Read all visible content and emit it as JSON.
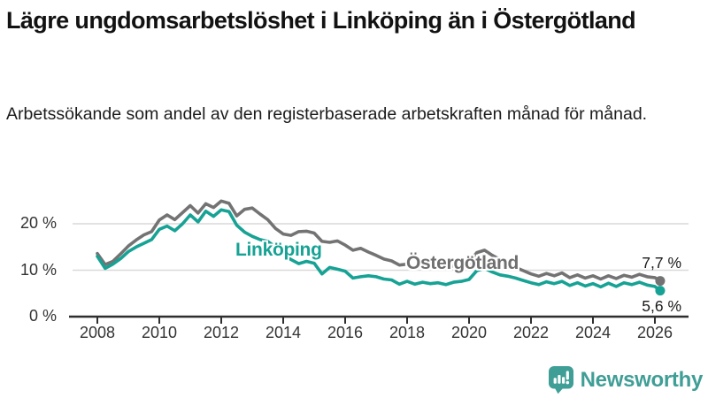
{
  "header": {
    "title": "Lägre ungdomsarbetslöshet i Linköping än i Östergötland",
    "subtitle": "Arbetssökande som andel av den registerbaserade arbetskraften månad för månad."
  },
  "chart_data": {
    "type": "line",
    "grid": true,
    "colors": {
      "gridline": "#d9d9d9",
      "axis": "#2e2e2e",
      "tick_text": "#333333"
    },
    "x_axis": {
      "ticks": [
        2008,
        2010,
        2012,
        2014,
        2016,
        2018,
        2020,
        2022,
        2024,
        2026
      ],
      "range": [
        2008,
        2026.2
      ]
    },
    "y_axis": {
      "unit": "%",
      "ticks": [
        {
          "label": "0 %",
          "value": 0
        },
        {
          "label": "10 %",
          "value": 10
        },
        {
          "label": "20 %",
          "value": 20
        }
      ],
      "ylim": [
        0,
        27
      ]
    },
    "series": [
      {
        "name": "Östergötland",
        "color": "#737373",
        "end_label": "7,7 %",
        "end_value": 7.7,
        "points": [
          [
            2008,
            13.6
          ],
          [
            2008.25,
            11.2
          ],
          [
            2008.5,
            11.9
          ],
          [
            2008.75,
            13.5
          ],
          [
            2009,
            15.2
          ],
          [
            2009.25,
            16.5
          ],
          [
            2009.5,
            17.6
          ],
          [
            2009.75,
            18.3
          ],
          [
            2010,
            20.8
          ],
          [
            2010.25,
            21.9
          ],
          [
            2010.5,
            20.9
          ],
          [
            2010.75,
            22.4
          ],
          [
            2011,
            23.9
          ],
          [
            2011.25,
            22.3
          ],
          [
            2011.5,
            24.3
          ],
          [
            2011.75,
            23.5
          ],
          [
            2012,
            24.9
          ],
          [
            2012.25,
            24.4
          ],
          [
            2012.5,
            21.7
          ],
          [
            2012.75,
            23.1
          ],
          [
            2013,
            23.4
          ],
          [
            2013.25,
            22.1
          ],
          [
            2013.5,
            20.9
          ],
          [
            2013.75,
            19.0
          ],
          [
            2014,
            17.8
          ],
          [
            2014.25,
            17.5
          ],
          [
            2014.5,
            18.3
          ],
          [
            2014.75,
            18.4
          ],
          [
            2015,
            18.0
          ],
          [
            2015.25,
            16.2
          ],
          [
            2015.5,
            16.0
          ],
          [
            2015.75,
            16.3
          ],
          [
            2016,
            15.4
          ],
          [
            2016.25,
            14.3
          ],
          [
            2016.5,
            14.7
          ],
          [
            2016.75,
            13.9
          ],
          [
            2017,
            13.2
          ],
          [
            2017.25,
            12.4
          ],
          [
            2017.5,
            12.0
          ],
          [
            2017.75,
            11.1
          ],
          [
            2018,
            11.3
          ],
          [
            2018.25,
            10.5
          ],
          [
            2018.5,
            10.9
          ],
          [
            2018.75,
            10.6
          ],
          [
            2019,
            10.9
          ],
          [
            2019.25,
            10.4
          ],
          [
            2019.5,
            11.0
          ],
          [
            2019.75,
            11.3
          ],
          [
            2020,
            11.6
          ],
          [
            2020.25,
            13.8
          ],
          [
            2020.5,
            14.3
          ],
          [
            2020.75,
            13.2
          ],
          [
            2021,
            12.3
          ],
          [
            2021.25,
            11.4
          ],
          [
            2021.5,
            10.6
          ],
          [
            2021.75,
            9.9
          ],
          [
            2022,
            9.2
          ],
          [
            2022.25,
            8.7
          ],
          [
            2022.5,
            9.3
          ],
          [
            2022.75,
            8.8
          ],
          [
            2023,
            9.4
          ],
          [
            2023.25,
            8.4
          ],
          [
            2023.5,
            9.0
          ],
          [
            2023.75,
            8.3
          ],
          [
            2024,
            8.8
          ],
          [
            2024.25,
            8.1
          ],
          [
            2024.5,
            8.8
          ],
          [
            2024.75,
            8.2
          ],
          [
            2025,
            8.9
          ],
          [
            2025.25,
            8.5
          ],
          [
            2025.5,
            9.1
          ],
          [
            2025.75,
            8.6
          ],
          [
            2026,
            8.4
          ],
          [
            2026.17,
            7.7
          ]
        ]
      },
      {
        "name": "Linköping",
        "color": "#16a294",
        "end_label": "5,6 %",
        "end_value": 5.6,
        "points": [
          [
            2008,
            13.0
          ],
          [
            2008.25,
            10.4
          ],
          [
            2008.5,
            11.3
          ],
          [
            2008.75,
            12.5
          ],
          [
            2009,
            14.0
          ],
          [
            2009.25,
            15.0
          ],
          [
            2009.5,
            15.8
          ],
          [
            2009.75,
            16.6
          ],
          [
            2010,
            18.8
          ],
          [
            2010.25,
            19.5
          ],
          [
            2010.5,
            18.5
          ],
          [
            2010.75,
            20.0
          ],
          [
            2011,
            21.9
          ],
          [
            2011.25,
            20.4
          ],
          [
            2011.5,
            22.7
          ],
          [
            2011.75,
            21.6
          ],
          [
            2012,
            23.0
          ],
          [
            2012.25,
            22.6
          ],
          [
            2012.5,
            19.7
          ],
          [
            2012.75,
            18.2
          ],
          [
            2013,
            17.3
          ],
          [
            2013.25,
            16.6
          ],
          [
            2013.5,
            16.2
          ],
          [
            2013.75,
            15.0
          ],
          [
            2014,
            13.3
          ],
          [
            2014.25,
            12.3
          ],
          [
            2014.5,
            11.4
          ],
          [
            2014.75,
            11.9
          ],
          [
            2015,
            11.5
          ],
          [
            2015.25,
            9.2
          ],
          [
            2015.5,
            10.6
          ],
          [
            2015.75,
            10.2
          ],
          [
            2016,
            9.8
          ],
          [
            2016.25,
            8.3
          ],
          [
            2016.5,
            8.6
          ],
          [
            2016.75,
            8.8
          ],
          [
            2017,
            8.6
          ],
          [
            2017.25,
            8.1
          ],
          [
            2017.5,
            7.9
          ],
          [
            2017.75,
            7.0
          ],
          [
            2018,
            7.6
          ],
          [
            2018.25,
            7.0
          ],
          [
            2018.5,
            7.4
          ],
          [
            2018.75,
            7.1
          ],
          [
            2019,
            7.3
          ],
          [
            2019.25,
            6.9
          ],
          [
            2019.5,
            7.4
          ],
          [
            2019.75,
            7.6
          ],
          [
            2020,
            8.0
          ],
          [
            2020.25,
            9.9
          ],
          [
            2020.5,
            10.4
          ],
          [
            2020.75,
            9.6
          ],
          [
            2021,
            9.0
          ],
          [
            2021.25,
            8.7
          ],
          [
            2021.5,
            8.3
          ],
          [
            2021.75,
            7.8
          ],
          [
            2022,
            7.3
          ],
          [
            2022.25,
            6.9
          ],
          [
            2022.5,
            7.5
          ],
          [
            2022.75,
            7.1
          ],
          [
            2023,
            7.6
          ],
          [
            2023.25,
            6.7
          ],
          [
            2023.5,
            7.3
          ],
          [
            2023.75,
            6.6
          ],
          [
            2024,
            7.1
          ],
          [
            2024.25,
            6.4
          ],
          [
            2024.5,
            7.2
          ],
          [
            2024.75,
            6.5
          ],
          [
            2025,
            7.3
          ],
          [
            2025.25,
            6.9
          ],
          [
            2025.5,
            7.4
          ],
          [
            2025.75,
            6.8
          ],
          [
            2026,
            6.5
          ],
          [
            2026.17,
            5.6
          ]
        ]
      }
    ]
  },
  "footer": {
    "brand": "Newsworthy",
    "logo_color": "#3f9e96"
  }
}
